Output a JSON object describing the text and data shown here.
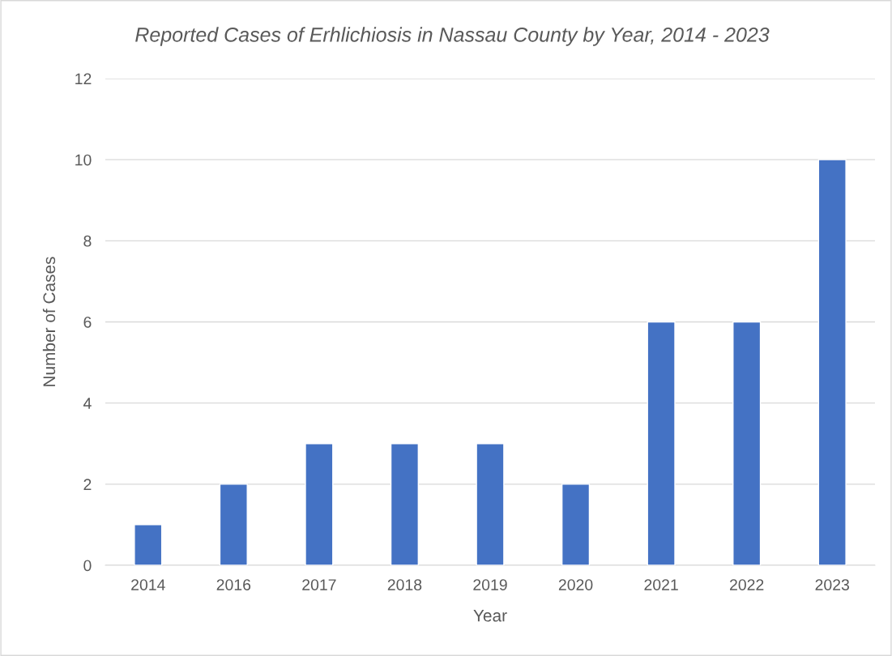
{
  "chart_data": {
    "type": "bar",
    "title": "Reported Cases of Erhlichiosis in Nassau County by Year, 2014 - 2023",
    "xlabel": "Year",
    "ylabel": "Number of Cases",
    "categories": [
      "2014",
      "2016",
      "2017",
      "2018",
      "2019",
      "2020",
      "2021",
      "2022",
      "2023"
    ],
    "values": [
      1,
      2,
      3,
      3,
      3,
      2,
      6,
      6,
      10
    ],
    "color": "#4472c4",
    "ylim": [
      0,
      12
    ],
    "yticks": [
      0,
      2,
      4,
      6,
      8,
      10,
      12
    ],
    "grid": "y"
  }
}
